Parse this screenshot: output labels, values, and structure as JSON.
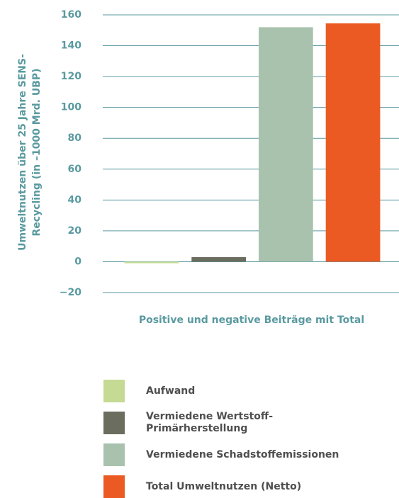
{
  "chart_data": {
    "type": "bar",
    "ylabel": [
      "Umweltnutzen über 25 Jahre SENS-",
      "Recycling (in –1000 Mrd. UBP)"
    ],
    "xlabel": "Positive und negative Beiträge mit Total",
    "categories": [
      "Aufwand",
      "Vermiedene Wertstoff-\nPrimärherstellung",
      "Vermiedene Schadstoffemissionen",
      "Total Umweltnutzen (Netto)"
    ],
    "values": [
      -1,
      3,
      152,
      154.5
    ],
    "colors": [
      "#c5da93",
      "#6b6d5e",
      "#a9c2ae",
      "#ec5a24"
    ],
    "ylim": [
      -20,
      160
    ],
    "yticks": [
      {
        "value": -20,
        "label": "−20"
      },
      0,
      20,
      40,
      60,
      80,
      100,
      120,
      140,
      160
    ],
    "grid": true
  }
}
